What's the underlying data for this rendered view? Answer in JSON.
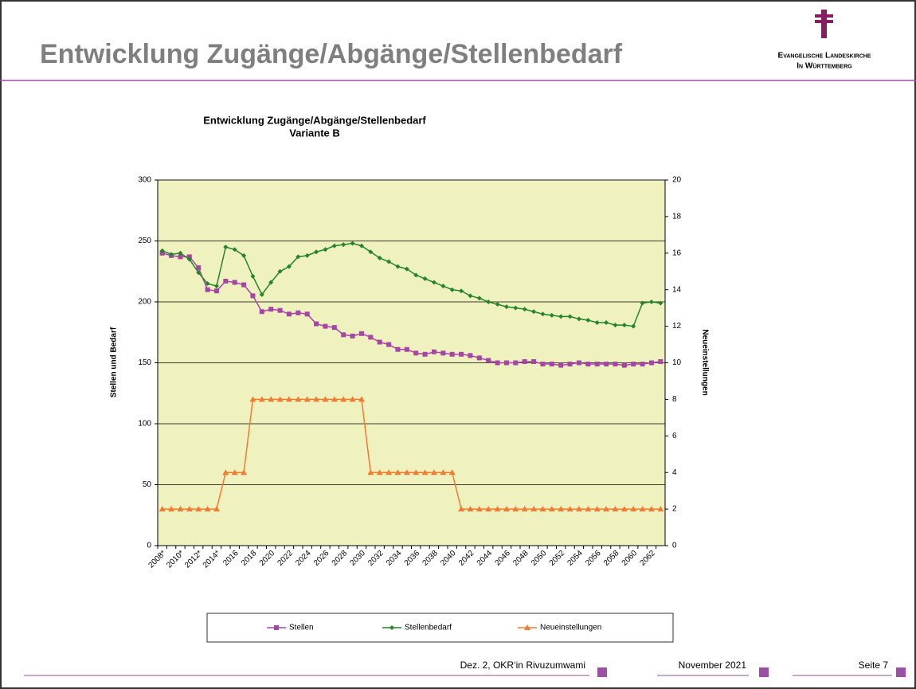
{
  "header": {
    "title": "Entwicklung Zugänge/Abgänge/Stellenbedarf"
  },
  "logo": {
    "line1": "Evangelische Landeskirche",
    "line2": "In Württemberg"
  },
  "chart_data": {
    "type": "line",
    "title": "Entwicklung Zugänge/Abgänge/Stellenbedarf",
    "subtitle": "Variante B",
    "y_label": "Stellen und Bedarf",
    "y2_label": "Neueinstellungen",
    "categories": [
      "2008*",
      null,
      "2010*",
      null,
      "2012*",
      null,
      "2014*",
      null,
      "2016",
      null,
      "2018",
      null,
      "2020",
      null,
      "2022",
      null,
      "2024",
      null,
      "2026",
      null,
      "2028",
      null,
      "2030",
      null,
      "2032",
      null,
      "2034",
      null,
      "2036",
      null,
      "2038",
      null,
      "2040",
      null,
      "2042",
      null,
      "2044",
      null,
      "2046",
      null,
      "2048",
      null,
      "2050",
      null,
      "2052",
      null,
      "2054",
      null,
      "2056",
      null,
      "2058",
      null,
      "2060",
      null,
      "2062",
      null
    ],
    "ylim": [
      0,
      300
    ],
    "yticks": [
      0,
      50,
      100,
      150,
      200,
      250,
      300
    ],
    "y2lim": [
      0,
      20
    ],
    "y2ticks": [
      0,
      2,
      4,
      6,
      8,
      10,
      12,
      14,
      16,
      18,
      20
    ],
    "grid": true,
    "legend": "bottom",
    "background": "#eff1bf",
    "series": [
      {
        "name": "Stellen",
        "color": "#a645a6",
        "marker": "square",
        "values": [
          240,
          238,
          237,
          237,
          228,
          210,
          209,
          217,
          216,
          214,
          205,
          192,
          194,
          193,
          190,
          191,
          190,
          182,
          180,
          179,
          173,
          172,
          174,
          171,
          167,
          165,
          161,
          161,
          158,
          157,
          159,
          158,
          157,
          157,
          156,
          154,
          152,
          150,
          150,
          150,
          151,
          151,
          149,
          149,
          148,
          149,
          150,
          149,
          149,
          149,
          149,
          148,
          149,
          149,
          150,
          151
        ]
      },
      {
        "name": "Stellenbedarf",
        "color": "#23842a",
        "marker": "diamond",
        "values": [
          242,
          239,
          240,
          235,
          224,
          215,
          213,
          245,
          243,
          238,
          221,
          206,
          216,
          225,
          229,
          237,
          238,
          241,
          243,
          246,
          247,
          248,
          246,
          241,
          236,
          233,
          229,
          227,
          222,
          219,
          216,
          213,
          210,
          209,
          205,
          203,
          200,
          198,
          196,
          195,
          194,
          192,
          190,
          189,
          188,
          188,
          186,
          185,
          183,
          183,
          181,
          181,
          180,
          199,
          200,
          199
        ]
      },
      {
        "name": "Neueinstellungen",
        "color": "#f07c30",
        "marker": "triangle",
        "axis": "y2",
        "values": [
          2,
          2,
          2,
          2,
          2,
          2,
          2,
          4,
          4,
          4,
          8,
          8,
          8,
          8,
          8,
          8,
          8,
          8,
          8,
          8,
          8,
          8,
          8,
          4,
          4,
          4,
          4,
          4,
          4,
          4,
          4,
          4,
          4,
          2,
          2,
          2,
          2,
          2,
          2,
          2,
          2,
          2,
          2,
          2,
          2,
          2,
          2,
          2,
          2,
          2,
          2,
          2,
          2,
          2,
          2,
          2
        ]
      }
    ]
  },
  "footer": {
    "author": "Dez. 2, OKR‘in Rivuzumwami",
    "date": "November 2021",
    "page": "Seite 7"
  }
}
